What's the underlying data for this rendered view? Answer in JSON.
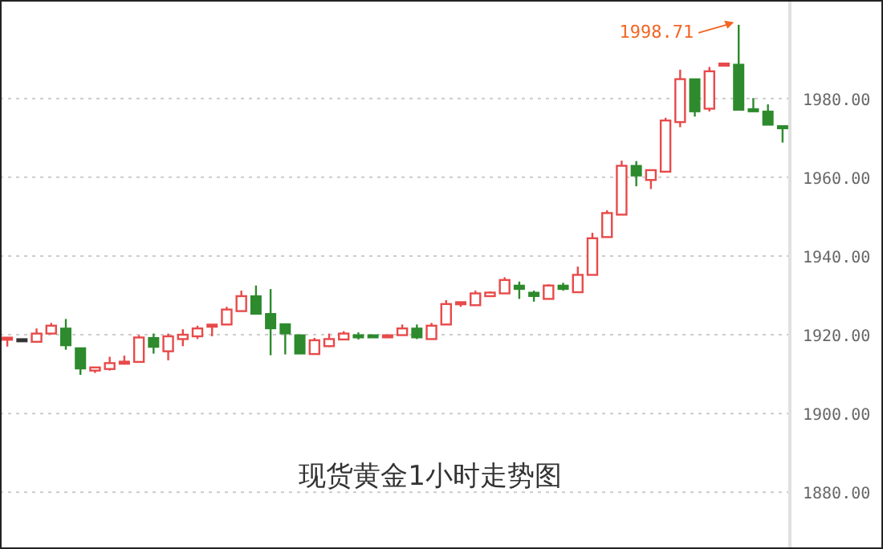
{
  "chart_data": {
    "type": "candlestick",
    "title": "现货黄金1小时走势图",
    "categories": [
      null,
      null,
      null,
      null,
      null,
      null,
      null,
      null,
      null,
      null,
      null,
      null,
      null,
      null,
      null,
      null,
      null,
      null,
      null,
      null,
      null,
      null,
      null,
      null,
      null,
      null,
      null,
      null,
      null,
      null,
      null,
      null,
      null,
      null,
      null,
      null,
      null,
      null,
      null,
      null,
      null,
      null,
      null,
      null,
      null,
      null,
      null,
      null,
      null,
      null,
      null,
      null,
      null,
      null
    ],
    "ohlc": [
      [
        1919,
        1919,
        1917,
        1919
      ],
      [
        1918.6,
        1918.6,
        1918.6,
        1918.6
      ],
      [
        1918.2,
        1921.6,
        1918.2,
        1920.3
      ],
      [
        1920.3,
        1923.0,
        1920.3,
        1922.3
      ],
      [
        1921.6,
        1924.0,
        1916.2,
        1917.3
      ],
      [
        1916.6,
        1916.6,
        1909.8,
        1911.4
      ],
      [
        1910.9,
        1911.8,
        1910.3,
        1911.7
      ],
      [
        1911.3,
        1914.4,
        1910.9,
        1912.8
      ],
      [
        1912.9,
        1914.7,
        1912.9,
        1912.9
      ],
      [
        1913.1,
        1919.9,
        1913.1,
        1919.3
      ],
      [
        1919.2,
        1920.3,
        1915.2,
        1916.9
      ],
      [
        1915.8,
        1920.3,
        1913.5,
        1919.6
      ],
      [
        1918.9,
        1921.4,
        1917.1,
        1920.0
      ],
      [
        1919.6,
        1922.3,
        1918.9,
        1921.6
      ],
      [
        1922.3,
        1922.3,
        1919.6,
        1922.3
      ],
      [
        1922.6,
        1927.1,
        1922.6,
        1926.4
      ],
      [
        1926.0,
        1931.2,
        1926.0,
        1929.8
      ],
      [
        1929.8,
        1932.5,
        1925.3,
        1925.3
      ],
      [
        1925.3,
        1931.6,
        1914.8,
        1921.6
      ],
      [
        1922.7,
        1922.7,
        1915.0,
        1920.3
      ],
      [
        1919.9,
        1919.9,
        1915.2,
        1915.2
      ],
      [
        1915.1,
        1919.2,
        1915.1,
        1918.6
      ],
      [
        1917.1,
        1920.3,
        1916.9,
        1918.9
      ],
      [
        1918.8,
        1920.9,
        1918.8,
        1920.3
      ],
      [
        1919.6,
        1920.6,
        1918.8,
        1919.6
      ],
      [
        1919.6,
        1919.9,
        1919.3,
        1919.6
      ],
      [
        1919.6,
        1919.6,
        1919.6,
        1919.6
      ],
      [
        1919.9,
        1922.6,
        1919.9,
        1921.6
      ],
      [
        1921.6,
        1922.6,
        1918.9,
        1919.3
      ],
      [
        1918.9,
        1923.0,
        1918.9,
        1922.3
      ],
      [
        1922.6,
        1928.8,
        1922.6,
        1927.8
      ],
      [
        1928.0,
        1928.0,
        1927.1,
        1928.0
      ],
      [
        1927.5,
        1931.2,
        1927.5,
        1930.5
      ],
      [
        1929.8,
        1931.0,
        1929.8,
        1930.7
      ],
      [
        1930.5,
        1934.6,
        1930.5,
        1933.9
      ],
      [
        1932.5,
        1933.5,
        1929.1,
        1931.6
      ],
      [
        1930.7,
        1931.2,
        1928.4,
        1929.8
      ],
      [
        1929.1,
        1932.8,
        1929.1,
        1932.5
      ],
      [
        1932.5,
        1933.2,
        1931.2,
        1931.6
      ],
      [
        1930.8,
        1937.3,
        1930.8,
        1935.2
      ],
      [
        1935.2,
        1945.9,
        1935.2,
        1944.5
      ],
      [
        1944.8,
        1951.6,
        1944.8,
        1950.9
      ],
      [
        1950.5,
        1964.2,
        1950.5,
        1962.9
      ],
      [
        1962.9,
        1964.1,
        1957.7,
        1960.4
      ],
      [
        1959.3,
        1962.0,
        1957.0,
        1961.8
      ],
      [
        1961.4,
        1975.1,
        1961.4,
        1974.4
      ],
      [
        1974.0,
        1987.3,
        1972.7,
        1984.9
      ],
      [
        1984.9,
        1984.9,
        1975.4,
        1976.7
      ],
      [
        1977.4,
        1988.0,
        1976.7,
        1986.9
      ],
      [
        1988.6,
        1988.6,
        1988.6,
        1988.6
      ],
      [
        1988.6,
        1998.71,
        1977.1,
        1977.1
      ],
      [
        1977.0,
        1980.1,
        1977.0,
        1977.0
      ],
      [
        1976.7,
        1978.5,
        1973.3,
        1973.3
      ],
      [
        1972.7,
        1972.7,
        1968.8,
        1972.7
      ]
    ],
    "colors": [
      "#e84a4a",
      "#333333",
      "#e84a4a",
      "#e84a4a",
      "#2d8a2d",
      "#2d8a2d",
      "#e84a4a",
      "#e84a4a",
      "#e84a4a",
      "#e84a4a",
      "#2d8a2d",
      "#e84a4a",
      "#e84a4a",
      "#e84a4a",
      "#e84a4a",
      "#e84a4a",
      "#e84a4a",
      "#2d8a2d",
      "#2d8a2d",
      "#2d8a2d",
      "#2d8a2d",
      "#e84a4a",
      "#e84a4a",
      "#e84a4a",
      "#2d8a2d",
      "#2d8a2d",
      "#e84a4a",
      "#e84a4a",
      "#2d8a2d",
      "#e84a4a",
      "#e84a4a",
      "#e84a4a",
      "#e84a4a",
      "#e84a4a",
      "#e84a4a",
      "#2d8a2d",
      "#2d8a2d",
      "#e84a4a",
      "#2d8a2d",
      "#e84a4a",
      "#e84a4a",
      "#e84a4a",
      "#e84a4a",
      "#2d8a2d",
      "#e84a4a",
      "#e84a4a",
      "#e84a4a",
      "#2d8a2d",
      "#e84a4a",
      "#e84a4a",
      "#2d8a2d",
      "#2d8a2d",
      "#2d8a2d",
      "#2d8a2d"
    ],
    "ylim": [
      1866,
      2005
    ],
    "yticks": [
      {
        "value": 1880,
        "label": "1880.00"
      },
      {
        "value": 1900,
        "label": "1900.00"
      },
      {
        "value": 1920,
        "label": "1920.00"
      },
      {
        "value": 1940,
        "label": "1940.00"
      },
      {
        "value": 1960,
        "label": "1960.00"
      },
      {
        "value": 1980,
        "label": "1980.00"
      }
    ],
    "grid": "y",
    "annotations": [
      "1998.71"
    ]
  }
}
